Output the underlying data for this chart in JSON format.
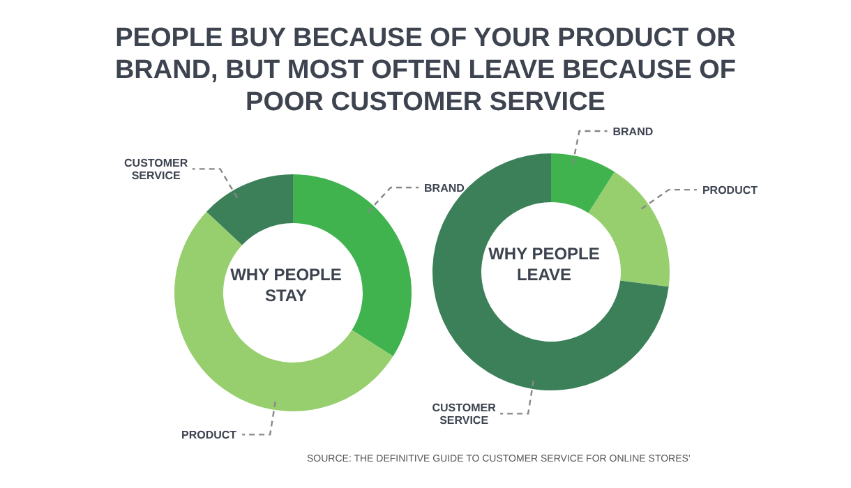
{
  "chart_data": [
    {
      "type": "donut",
      "title": "PEOPLE BUY BECAUSE OF YOUR PRODUCT OR BRAND, BUT MOST OFTEN LEAVE BECAUSE OF POOR CUSTOMER SERVICE",
      "subtitle": "WHY PEOPLE STAY",
      "categories": [
        "BRAND",
        "PRODUCT",
        "CUSTOMER SERVICE"
      ],
      "values": [
        34,
        53,
        13
      ],
      "colors": [
        "#40b34f",
        "#97cf6f",
        "#3b8059"
      ],
      "legend": false
    },
    {
      "type": "donut",
      "subtitle": "WHY PEOPLE LEAVE",
      "categories": [
        "BRAND",
        "PRODUCT",
        "CUSTOMER SERVICE"
      ],
      "values": [
        9,
        18,
        73
      ],
      "colors": [
        "#40b34f",
        "#97cf6f",
        "#3b8059"
      ],
      "legend": false,
      "annotations": [
        "SOURCE: THE DEFINITIVE GUIDE TO CUSTOMER SERVICE FOR ONLINE STORES'"
      ]
    }
  ]
}
